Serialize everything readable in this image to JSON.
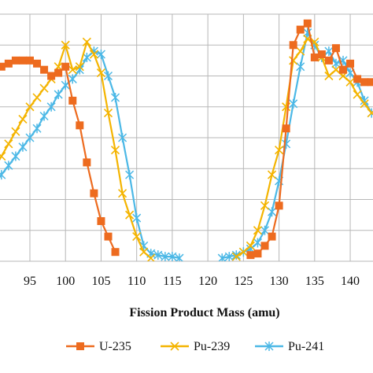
{
  "chart_data": {
    "type": "line",
    "title": "",
    "xlabel": "Fission Product Mass (amu)",
    "ylabel": "",
    "xlim": [
      90.8,
      143.2
    ],
    "ylim": [
      0,
      8
    ],
    "x_ticks": [
      95,
      100,
      105,
      110,
      115,
      120,
      125,
      130,
      135,
      140
    ],
    "grid": true,
    "legend_position": "bottom",
    "series": [
      {
        "name": "U-235",
        "color": "#ed6b1f",
        "marker": "square",
        "x": [
          90,
          91,
          92,
          93,
          94,
          95,
          96,
          97,
          98,
          99,
          100,
          101,
          102,
          103,
          104,
          105,
          106,
          107,
          126,
          127,
          128,
          129,
          130,
          131,
          132,
          133,
          134,
          135,
          136,
          137,
          138,
          139,
          140,
          141,
          142,
          143
        ],
        "y": [
          6.2,
          6.3,
          6.4,
          6.5,
          6.5,
          6.5,
          6.4,
          6.2,
          6.0,
          6.1,
          6.3,
          5.2,
          4.4,
          3.2,
          2.2,
          1.3,
          0.8,
          0.3,
          0.2,
          0.25,
          0.5,
          0.8,
          1.8,
          4.3,
          7.0,
          7.5,
          7.7,
          6.6,
          6.7,
          6.5,
          6.9,
          6.2,
          6.4,
          5.9,
          5.8,
          5.8
        ]
      },
      {
        "name": "Pu-239",
        "color": "#f4b400",
        "marker": "x",
        "x": [
          90,
          91,
          92,
          93,
          94,
          95,
          96,
          97,
          98,
          99,
          100,
          101,
          102,
          103,
          104,
          105,
          106,
          107,
          108,
          109,
          110,
          111,
          112,
          124,
          125,
          126,
          127,
          128,
          129,
          130,
          131,
          132,
          133,
          134,
          135,
          136,
          137,
          138,
          139,
          140,
          141,
          142,
          143
        ],
        "y": [
          3.0,
          3.4,
          3.8,
          4.2,
          4.6,
          5.0,
          5.3,
          5.6,
          5.9,
          6.3,
          7.0,
          6.2,
          6.3,
          7.1,
          6.7,
          6.1,
          4.8,
          3.6,
          2.2,
          1.5,
          0.8,
          0.3,
          0.1,
          0.15,
          0.3,
          0.5,
          1.0,
          1.8,
          2.8,
          3.6,
          5.0,
          6.5,
          6.8,
          7.2,
          7.1,
          6.6,
          6.0,
          6.2,
          6.0,
          5.8,
          5.4,
          5.1,
          4.8
        ]
      },
      {
        "name": "Pu-241",
        "color": "#4cb8e6",
        "marker": "asterisk",
        "x": [
          90,
          91,
          92,
          93,
          94,
          95,
          96,
          97,
          98,
          99,
          100,
          101,
          102,
          103,
          104,
          105,
          106,
          107,
          108,
          109,
          110,
          111,
          112,
          113,
          114,
          115,
          116,
          122,
          123,
          124,
          125,
          126,
          127,
          128,
          129,
          130,
          131,
          132,
          133,
          134,
          135,
          136,
          137,
          138,
          139,
          140,
          141,
          142,
          143
        ],
        "y": [
          2.5,
          2.8,
          3.1,
          3.4,
          3.7,
          4.0,
          4.3,
          4.7,
          5.0,
          5.4,
          5.7,
          5.9,
          6.2,
          6.6,
          6.8,
          6.7,
          6.0,
          5.3,
          4.0,
          2.8,
          1.4,
          0.5,
          0.25,
          0.2,
          0.15,
          0.15,
          0.1,
          0.1,
          0.15,
          0.2,
          0.3,
          0.4,
          0.6,
          1.0,
          1.6,
          2.6,
          3.8,
          5.1,
          6.3,
          7.4,
          7.0,
          6.6,
          6.8,
          6.4,
          6.5,
          6.1,
          5.8,
          5.2,
          4.8
        ]
      }
    ]
  }
}
